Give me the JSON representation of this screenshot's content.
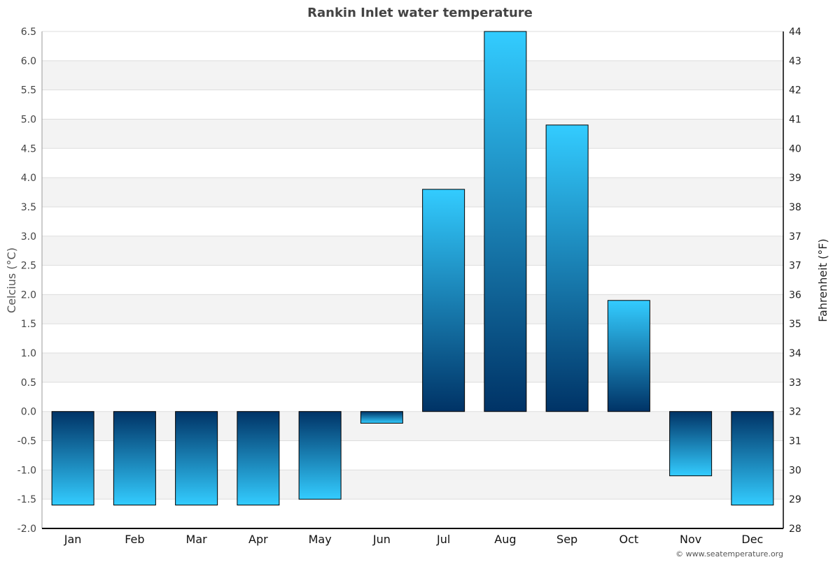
{
  "chart_data": {
    "type": "bar",
    "title": "Rankin Inlet water temperature",
    "ylabel": "Celcius (°C)",
    "y2label": "Fahrenheit (°F)",
    "categories": [
      "Jan",
      "Feb",
      "Mar",
      "Apr",
      "May",
      "Jun",
      "Jul",
      "Aug",
      "Sep",
      "Oct",
      "Nov",
      "Dec"
    ],
    "values": [
      -1.6,
      -1.6,
      -1.6,
      -1.6,
      -1.5,
      -0.2,
      3.8,
      6.5,
      4.9,
      1.9,
      -1.1,
      -1.6
    ],
    "ylim": [
      -2.0,
      6.5
    ],
    "yticks": [
      "6.5",
      "6.0",
      "5.5",
      "5.0",
      "4.5",
      "4.0",
      "3.5",
      "3.0",
      "2.5",
      "2.0",
      "1.5",
      "1.0",
      "0.5",
      "0.0",
      "-0.5",
      "-1.0",
      "-1.5",
      "-2.0"
    ],
    "y2ticks": [
      "44",
      "43",
      "42",
      "41",
      "40",
      "39",
      "38",
      "37",
      "37",
      "36",
      "35",
      "34",
      "33",
      "32",
      "31",
      "30",
      "29",
      "28"
    ],
    "grid": true,
    "legend": "none",
    "colors": {
      "bar_light": "#33ccff",
      "bar_dark": "#003366",
      "band": "#f3f3f3",
      "grid": "#dddddd"
    }
  },
  "footer": {
    "credit": "© www.seatemperature.org"
  }
}
